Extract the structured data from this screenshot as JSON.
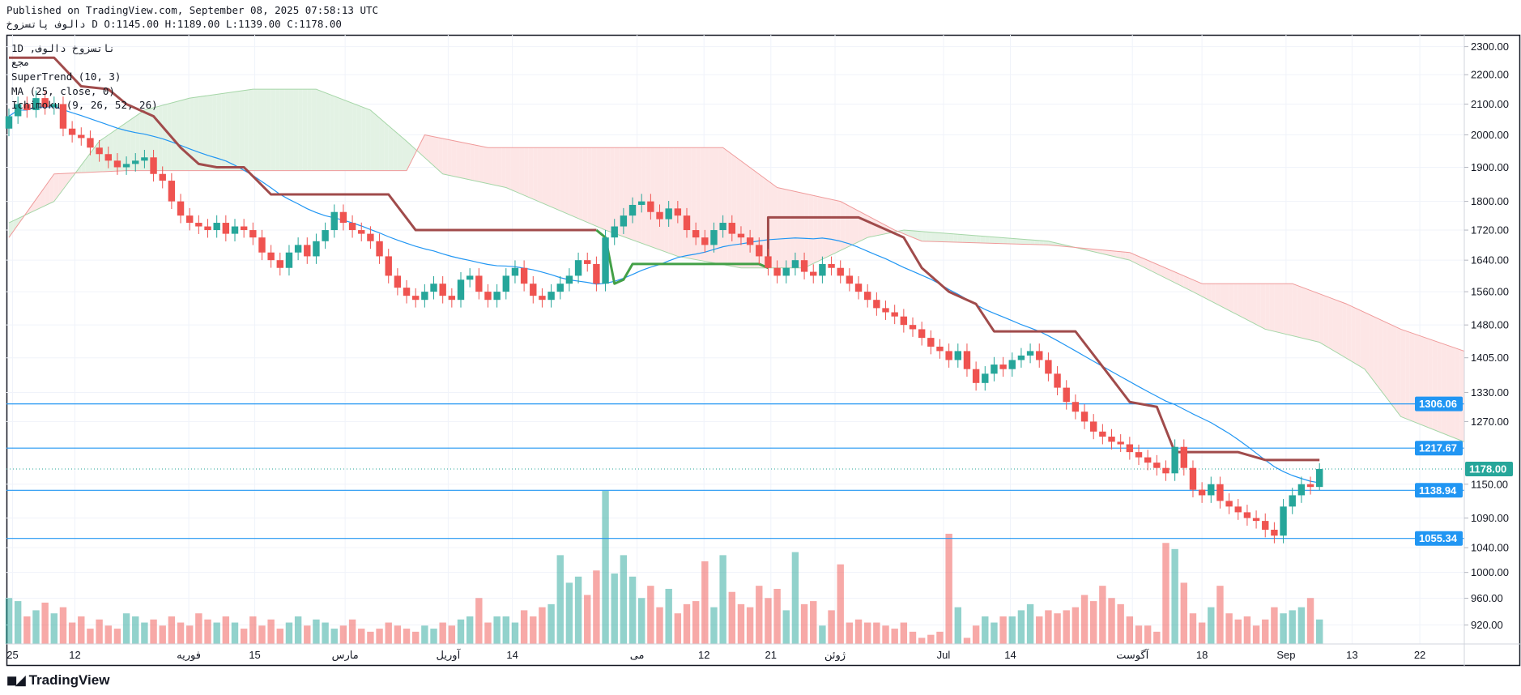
{
  "header": {
    "published": "Published on TradingView.com, September 08, 2025 07:58:13 UTC",
    "ohlc_line": "دالوف  پاتسزوخ D O:1145.00 H:1189.00 L:1139.00 C:1178.00"
  },
  "legend": {
    "symbol": "1D ,ناتسزوخ دالوف",
    "exchange": "مجع",
    "supertrend": "SuperTrend (10, 3)",
    "ma": "MA (25, close, 0)",
    "ichimoku": "Ichimoku (9, 26, 52, 26)"
  },
  "brand": "TradingView",
  "colors": {
    "up": "#26a69a",
    "down": "#ef5350",
    "hline": "#2196f3",
    "supertrend": "#a04b4b",
    "supertrend_up": "#43a047",
    "ma": "#2196f3",
    "cloud_up": "#c8e6c9",
    "cloud_down": "#fcdcdc"
  },
  "chart_data": {
    "type": "candlestick",
    "scale": "log",
    "y_ticks": [
      "2300.00",
      "2200.00",
      "2100.00",
      "2000.00",
      "1900.00",
      "1800.00",
      "1720.00",
      "1640.00",
      "1560.00",
      "1480.00",
      "1405.00",
      "1330.00",
      "1270.00",
      "1150.00",
      "1090.00",
      "1040.00",
      "1000.00",
      "960.00",
      "920.00"
    ],
    "x_ticks": [
      {
        "label": "25",
        "i": 0.4
      },
      {
        "label": "12",
        "i": 7.3
      },
      {
        "label": "فوریه",
        "i": 19.9
      },
      {
        "label": "15",
        "i": 27.2
      },
      {
        "label": "مارس",
        "i": 37.2
      },
      {
        "label": "آوریل",
        "i": 48.6
      },
      {
        "label": "14",
        "i": 55.7
      },
      {
        "label": "مى",
        "i": 69.5
      },
      {
        "label": "12",
        "i": 76.9
      },
      {
        "label": "21",
        "i": 84.3
      },
      {
        "label": "ژوئن",
        "i": 91.4
      },
      {
        "label": "Jul",
        "i": 103.4
      },
      {
        "label": "14",
        "i": 110.8
      },
      {
        "label": "آگوست",
        "i": 124.3
      },
      {
        "label": "18",
        "i": 132.0
      },
      {
        "label": "Sep",
        "i": 141.3
      },
      {
        "label": "13",
        "i": 148.6
      },
      {
        "label": "22",
        "i": 156.1
      }
    ],
    "closes": [
      2060,
      2100,
      2080,
      2120,
      2090,
      2100,
      2020,
      2000,
      1990,
      1960,
      1940,
      1920,
      1900,
      1910,
      1920,
      1930,
      1880,
      1860,
      1800,
      1760,
      1740,
      1730,
      1720,
      1740,
      1710,
      1730,
      1720,
      1700,
      1660,
      1640,
      1620,
      1660,
      1680,
      1650,
      1690,
      1720,
      1770,
      1740,
      1720,
      1710,
      1690,
      1650,
      1600,
      1570,
      1550,
      1540,
      1560,
      1580,
      1550,
      1540,
      1590,
      1600,
      1560,
      1540,
      1560,
      1600,
      1620,
      1580,
      1550,
      1540,
      1560,
      1580,
      1600,
      1640,
      1630,
      1580,
      1700,
      1730,
      1760,
      1790,
      1800,
      1770,
      1750,
      1780,
      1760,
      1720,
      1700,
      1680,
      1720,
      1740,
      1710,
      1700,
      1680,
      1650,
      1620,
      1600,
      1620,
      1640,
      1610,
      1600,
      1630,
      1620,
      1600,
      1580,
      1560,
      1540,
      1520,
      1510,
      1500,
      1480,
      1470,
      1450,
      1430,
      1420,
      1400,
      1420,
      1380,
      1350,
      1370,
      1390,
      1380,
      1400,
      1410,
      1420,
      1400,
      1370,
      1340,
      1310,
      1290,
      1270,
      1250,
      1240,
      1230,
      1225,
      1210,
      1200,
      1190,
      1180,
      1170,
      1220,
      1180,
      1140,
      1130,
      1150,
      1120,
      1110,
      1100,
      1090,
      1085,
      1070,
      1060,
      1110,
      1130,
      1150,
      1145,
      1178
    ],
    "last": {
      "open": 1145,
      "high": 1189,
      "low": 1139,
      "close": 1178
    },
    "volume": [
      30,
      28,
      18,
      22,
      27,
      20,
      24,
      14,
      18,
      10,
      16,
      12,
      10,
      20,
      18,
      14,
      16,
      12,
      18,
      14,
      12,
      20,
      16,
      14,
      18,
      14,
      10,
      18,
      12,
      16,
      10,
      14,
      18,
      12,
      16,
      14,
      10,
      12,
      16,
      10,
      8,
      10,
      14,
      12,
      10,
      8,
      12,
      10,
      14,
      12,
      16,
      18,
      30,
      14,
      18,
      18,
      14,
      22,
      18,
      24,
      26,
      58,
      40,
      44,
      32,
      48,
      100,
      46,
      58,
      44,
      30,
      38,
      24,
      36,
      20,
      26,
      28,
      54,
      24,
      58,
      34,
      26,
      24,
      38,
      30,
      36,
      22,
      60,
      26,
      28,
      12,
      22,
      52,
      14,
      16,
      14,
      14,
      12,
      10,
      14,
      8,
      4,
      6,
      8,
      72,
      24,
      4,
      12,
      18,
      14,
      18,
      18,
      22,
      26,
      18,
      22,
      20,
      22,
      24,
      32,
      28,
      38,
      30,
      26,
      18,
      12,
      12,
      8,
      66,
      62,
      40,
      20,
      14,
      24,
      38,
      20,
      16,
      18,
      12,
      16,
      24,
      20,
      22,
      24,
      30,
      16
    ],
    "ichimoku_span_a": [
      [
        0,
        1740
      ],
      [
        5,
        1800
      ],
      [
        10,
        1980
      ],
      [
        15,
        2080
      ],
      [
        20,
        2120
      ],
      [
        27,
        2150
      ],
      [
        34,
        2150
      ],
      [
        40,
        2080
      ],
      [
        44,
        1980
      ],
      [
        48,
        1880
      ],
      [
        55,
        1840
      ],
      [
        66,
        1720
      ],
      [
        74,
        1650
      ],
      [
        81,
        1620
      ],
      [
        88,
        1620
      ],
      [
        95,
        1700
      ],
      [
        99,
        1720
      ],
      [
        115,
        1690
      ],
      [
        124,
        1640
      ],
      [
        131,
        1560
      ],
      [
        139,
        1470
      ],
      [
        145,
        1440
      ],
      [
        150,
        1380
      ],
      [
        154,
        1280
      ],
      [
        161,
        1230
      ]
    ],
    "ichimoku_span_b": [
      [
        0,
        1700
      ],
      [
        5,
        1880
      ],
      [
        13,
        1890
      ],
      [
        44,
        1890
      ],
      [
        46,
        2000
      ],
      [
        53,
        1960
      ],
      [
        79,
        1960
      ],
      [
        85,
        1840
      ],
      [
        92,
        1800
      ],
      [
        98,
        1720
      ],
      [
        101,
        1690
      ],
      [
        115,
        1680
      ],
      [
        124,
        1660
      ],
      [
        132,
        1580
      ],
      [
        142,
        1580
      ],
      [
        148,
        1530
      ],
      [
        154,
        1470
      ],
      [
        161,
        1420
      ]
    ],
    "supertrend_down_1": [
      [
        0,
        2260
      ],
      [
        5,
        2260
      ],
      [
        8,
        2160
      ],
      [
        11,
        2150
      ],
      [
        13,
        2100
      ],
      [
        16,
        2060
      ],
      [
        19,
        1960
      ],
      [
        21,
        1910
      ],
      [
        23,
        1900
      ],
      [
        26,
        1900
      ],
      [
        29,
        1820
      ],
      [
        42,
        1820
      ],
      [
        45,
        1720
      ],
      [
        65,
        1720
      ]
    ],
    "supertrend_up": [
      [
        65,
        1720
      ],
      [
        66,
        1700
      ],
      [
        67,
        1580
      ],
      [
        68,
        1590
      ],
      [
        69,
        1630
      ],
      [
        83,
        1630
      ],
      [
        84,
        1620
      ]
    ],
    "supertrend_down_2": [
      [
        84,
        1620
      ],
      [
        84,
        1755
      ],
      [
        94,
        1755
      ],
      [
        99,
        1700
      ],
      [
        101,
        1620
      ],
      [
        104,
        1560
      ],
      [
        106,
        1540
      ],
      [
        107,
        1530
      ],
      [
        109,
        1465
      ],
      [
        118,
        1465
      ],
      [
        122,
        1360
      ],
      [
        124,
        1310
      ],
      [
        127,
        1300
      ],
      [
        129,
        1210
      ],
      [
        136,
        1210
      ],
      [
        139,
        1195
      ],
      [
        145,
        1195
      ]
    ],
    "horizontal_lines": [
      {
        "value": 1306.06,
        "label": "1306.06"
      },
      {
        "value": 1217.67,
        "label": "1217.67"
      },
      {
        "value": 1138.94,
        "label": "1138.94"
      },
      {
        "value": 1055.34,
        "label": "1055.34"
      }
    ],
    "last_price_label": "1178.00"
  }
}
